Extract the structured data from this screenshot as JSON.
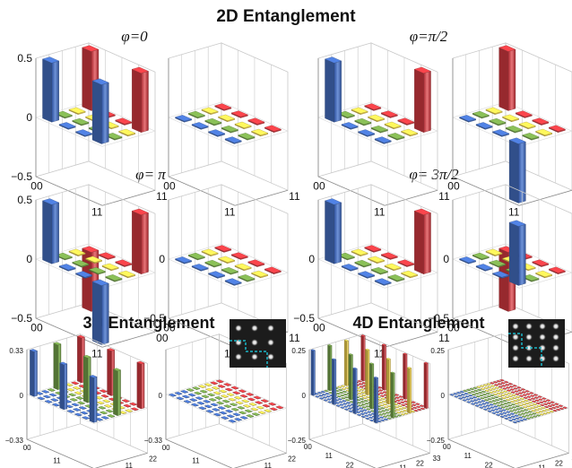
{
  "headings": {
    "main": "2D Entanglement",
    "three_d": "3D Entanglement",
    "four_d": "4D Entanglement"
  },
  "phase_labels": [
    "φ=0",
    "φ=π/2",
    "φ= π",
    "φ= 3π/2"
  ],
  "colors": {
    "blue": "#4169b8",
    "green": "#6f9a46",
    "yellow": "#e2c64a",
    "red": "#c9373d",
    "grid": "#c8c8c8",
    "inset_border": "#19b7c8"
  },
  "chart_data": [
    {
      "type": "bar3d",
      "title": "φ=0",
      "part": "real",
      "dim": 2,
      "zticks": [
        "0.5",
        "0",
        "−0.5"
      ],
      "zlim": [
        -0.5,
        0.5
      ],
      "corner_labels": [
        "00",
        "11",
        "11"
      ],
      "matrix": [
        [
          0.5,
          0,
          0,
          0.5
        ],
        [
          0,
          0,
          0,
          0
        ],
        [
          0,
          0,
          0,
          0
        ],
        [
          0.5,
          0,
          0,
          0.5
        ]
      ]
    },
    {
      "type": "bar3d",
      "title": "φ=0",
      "part": "imag",
      "dim": 2,
      "zticks": [],
      "zlim": [
        -0.5,
        0.5
      ],
      "corner_labels": [
        "00",
        "11",
        "11"
      ],
      "matrix": [
        [
          0,
          0,
          0,
          0
        ],
        [
          0,
          0,
          0,
          0
        ],
        [
          0,
          0,
          0,
          0
        ],
        [
          0,
          0,
          0,
          0
        ]
      ]
    },
    {
      "type": "bar3d",
      "title": "φ=π/2",
      "part": "real",
      "dim": 2,
      "zticks": [],
      "zlim": [
        -0.5,
        0.5
      ],
      "corner_labels": [
        "00",
        "11",
        "11"
      ],
      "matrix": [
        [
          0.5,
          0,
          0,
          0
        ],
        [
          0,
          0,
          0,
          0
        ],
        [
          0,
          0,
          0,
          0
        ],
        [
          0,
          0,
          0,
          0.5
        ]
      ]
    },
    {
      "type": "bar3d",
      "title": "φ=π/2",
      "part": "imag",
      "dim": 2,
      "zticks": [],
      "zlim": [
        -0.5,
        0.5
      ],
      "corner_labels": [
        "00",
        "11",
        "00"
      ],
      "matrix": [
        [
          0,
          0,
          0,
          0.5
        ],
        [
          0,
          0,
          0,
          0
        ],
        [
          0,
          0,
          0,
          0
        ],
        [
          -0.5,
          0,
          0,
          0
        ]
      ]
    },
    {
      "type": "bar3d",
      "title": "φ= π",
      "part": "real",
      "dim": 2,
      "zticks": [
        "0.5",
        "0",
        "−0.5"
      ],
      "zlim": [
        -0.5,
        0.5
      ],
      "corner_labels": [
        "00",
        "11",
        "00"
      ],
      "matrix": [
        [
          0.5,
          0,
          0,
          -0.5
        ],
        [
          0,
          0,
          0,
          0
        ],
        [
          0,
          0,
          0,
          0
        ],
        [
          -0.5,
          0,
          0,
          0.5
        ]
      ]
    },
    {
      "type": "bar3d",
      "title": "φ= π",
      "part": "imag",
      "dim": 2,
      "zticks": [
        "0",
        "−0.5"
      ],
      "zlim": [
        -0.5,
        0.5
      ],
      "corner_labels": [
        "00",
        "11",
        "11"
      ],
      "matrix": [
        [
          0,
          0,
          0,
          0
        ],
        [
          0,
          0,
          0,
          0
        ],
        [
          0,
          0,
          0,
          0
        ],
        [
          0,
          0,
          0,
          0
        ]
      ]
    },
    {
      "type": "bar3d",
      "title": "φ= 3π/2",
      "part": "real",
      "dim": 2,
      "zticks": [
        "0",
        "−0.5"
      ],
      "zlim": [
        -0.5,
        0.5
      ],
      "corner_labels": [
        "00",
        "11",
        "11"
      ],
      "matrix": [
        [
          0.5,
          0,
          0,
          0
        ],
        [
          0,
          0,
          0,
          0
        ],
        [
          0,
          0,
          0,
          0
        ],
        [
          0,
          0,
          0,
          0.5
        ]
      ]
    },
    {
      "type": "bar3d",
      "title": "φ= 3π/2",
      "part": "imag",
      "dim": 2,
      "zticks": [
        "0",
        "−0.5"
      ],
      "zlim": [
        -0.5,
        0.5
      ],
      "corner_labels": [
        "00",
        "11",
        "11"
      ],
      "matrix": [
        [
          0,
          0,
          0,
          -0.5
        ],
        [
          0,
          0,
          0,
          0
        ],
        [
          0,
          0,
          0,
          0
        ],
        [
          0.5,
          0,
          0,
          0
        ]
      ]
    },
    {
      "type": "bar3d",
      "title": "3D Entanglement",
      "part": "real",
      "dim": 3,
      "zticks": [
        "0.33",
        "0",
        "−0.33"
      ],
      "zlim": [
        -0.33,
        0.33
      ],
      "tick_labels": [
        "00",
        "11",
        "22"
      ],
      "matrix": [
        [
          0.33,
          0,
          0,
          0,
          0.33,
          0,
          0,
          0,
          0.33
        ],
        [
          0,
          0,
          0,
          0,
          0,
          0,
          0,
          0,
          0
        ],
        [
          0,
          0,
          0,
          0,
          0,
          0,
          0,
          0,
          0
        ],
        [
          0,
          0,
          0,
          0,
          0,
          0,
          0,
          0,
          0
        ],
        [
          0.33,
          0,
          0,
          0,
          0.33,
          0,
          0,
          0,
          0.33
        ],
        [
          0,
          0,
          0,
          0,
          0,
          0,
          0,
          0,
          0
        ],
        [
          0,
          0,
          0,
          0,
          0,
          0,
          0,
          0,
          0
        ],
        [
          0,
          0,
          0,
          0,
          0,
          0,
          0,
          0,
          0
        ],
        [
          0.33,
          0,
          0,
          0,
          0.33,
          0,
          0,
          0,
          0.33
        ]
      ]
    },
    {
      "type": "bar3d",
      "title": "3D Entanglement",
      "part": "imag",
      "dim": 3,
      "zticks": [
        "0",
        "−0.33"
      ],
      "zlim": [
        -0.33,
        0.33
      ],
      "tick_labels": [
        "00",
        "11",
        "22"
      ],
      "matrix": [
        [
          0,
          0,
          0,
          0,
          0,
          0,
          0,
          0,
          0
        ],
        [
          0,
          0,
          0,
          0,
          0,
          0,
          0,
          0,
          0
        ],
        [
          0,
          0,
          0,
          0,
          0,
          0,
          0,
          0,
          0
        ],
        [
          0,
          0,
          0,
          0,
          0,
          0,
          0,
          0,
          0
        ],
        [
          0,
          0,
          0,
          0,
          0,
          0,
          0,
          0,
          0
        ],
        [
          0,
          0,
          0,
          0,
          0,
          0,
          0,
          0,
          0
        ],
        [
          0,
          0,
          0,
          0,
          0,
          0,
          0,
          0,
          0
        ],
        [
          0,
          0,
          0,
          0,
          0,
          0,
          0,
          0,
          0
        ],
        [
          0,
          0,
          0,
          0,
          0,
          0,
          0,
          0,
          0
        ]
      ]
    },
    {
      "type": "bar3d",
      "title": "4D Entanglement",
      "part": "real",
      "dim": 4,
      "zticks": [
        "0.25",
        "0",
        "−0.25"
      ],
      "zlim": [
        -0.25,
        0.25
      ],
      "tick_labels": [
        "00",
        "11",
        "22",
        "33"
      ],
      "diagonal_value": 0.25,
      "corner_labels": []
    },
    {
      "type": "bar3d",
      "title": "4D Entanglement",
      "part": "imag",
      "dim": 4,
      "zticks": [
        "0.25",
        "0",
        "−0.25"
      ],
      "zlim": [
        -0.25,
        0.25
      ],
      "tick_labels": [
        "00",
        "11",
        "22",
        "33"
      ],
      "diagonal_value": 0,
      "corner_labels": []
    }
  ]
}
